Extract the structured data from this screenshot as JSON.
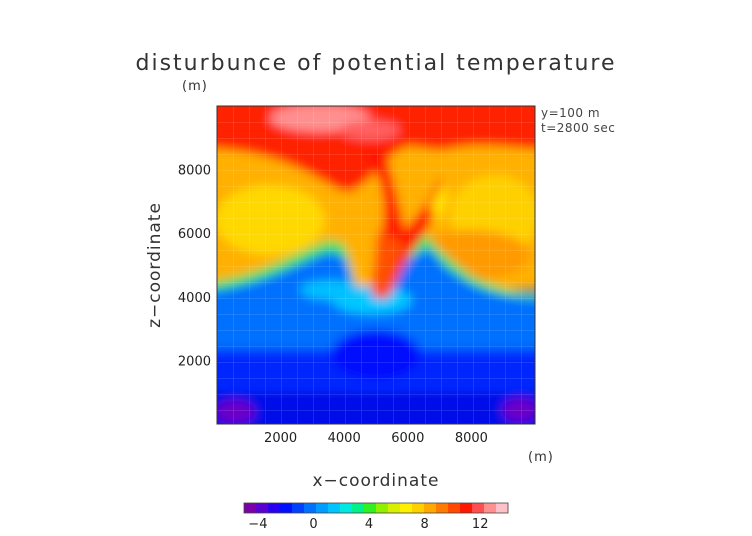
{
  "chart_data": {
    "type": "heatmap",
    "title": "disturbunce of potential temperature",
    "title_unit": "(m)",
    "xlabel": "x−coordinate",
    "ylabel": "z−coordinate",
    "x_unit": "(m)",
    "xlim": [
      0,
      10000
    ],
    "ylim": [
      0,
      10000
    ],
    "x_ticks": [
      2000,
      4000,
      6000,
      8000
    ],
    "y_ticks": [
      2000,
      4000,
      6000,
      8000
    ],
    "annotations": [
      "y=100  m",
      "t=2800 sec"
    ],
    "colorbar": {
      "range": [
        -5,
        14
      ],
      "tick_values": [
        -4,
        0,
        4,
        8,
        12
      ],
      "tick_labels": [
        "−4",
        "0",
        "4",
        "8",
        "12"
      ],
      "colors": [
        "#7a00a8",
        "#5a00d0",
        "#2a00f0",
        "#0010ff",
        "#0040ff",
        "#0070ff",
        "#009cff",
        "#00c4ff",
        "#00e8e0",
        "#00f08a",
        "#30f020",
        "#90f000",
        "#d8f000",
        "#fff000",
        "#ffd000",
        "#ffa800",
        "#ff7a00",
        "#ff4a00",
        "#ff1800",
        "#ff5050",
        "#ff9090",
        "#ffc0c8"
      ]
    },
    "field_description": [
      {
        "z_range": [
          0,
          1500
        ],
        "value": -4,
        "note": "dark blue bottom layer, purple patches at corners"
      },
      {
        "z_range": [
          1500,
          4100
        ],
        "value": -1,
        "note": "blue; cooler dome near x=5000 up to z=3000"
      },
      {
        "z_range": [
          4100,
          4500
        ],
        "value": 2,
        "note": "cyan/green transition band"
      },
      {
        "z_range": [
          4500,
          8500
        ],
        "value": 8,
        "note": "orange/yellow warm layer"
      },
      {
        "z_range": [
          8500,
          10000
        ],
        "value": 11,
        "note": "red top layer, pink near x=4000-5000"
      },
      {
        "plume_center_x": [
          4700,
          6600
        ],
        "z_range": [
          3800,
          9500
        ],
        "value": 11,
        "note": "red V-shaped plume descending to z=3800 near x=5000"
      }
    ]
  }
}
